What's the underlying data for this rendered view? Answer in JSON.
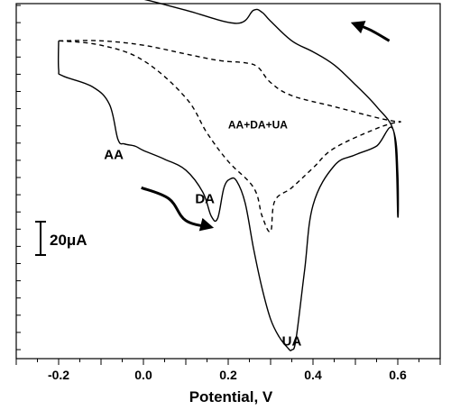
{
  "chart_data": {
    "type": "line",
    "title": "",
    "xlabel": "Potential, V",
    "ylabel": "",
    "xlim": [
      -0.3,
      0.7
    ],
    "ylim": [
      -60,
      102
    ],
    "xticks": [
      -0.2,
      0.0,
      0.2,
      0.4,
      0.6
    ],
    "xtick_labels": [
      "-0.2",
      "0.0",
      "0.2",
      "0.4",
      "0.6"
    ],
    "grid": false,
    "legend": "none",
    "scale_bar": {
      "label": "20μA",
      "value": 20
    },
    "annotations": [
      {
        "text": "AA",
        "x": -0.07,
        "y": 31
      },
      {
        "text": "DA",
        "x": 0.145,
        "y": 11
      },
      {
        "text": "UA",
        "x": 0.35,
        "y": -54
      },
      {
        "text": "AA+DA+UA",
        "x": 0.27,
        "y": 45
      }
    ],
    "arrows": [
      {
        "name": "reverse-scan-arrow",
        "points": [
          [
            0.58,
            85
          ],
          [
            0.535,
            90
          ],
          [
            0.495,
            93
          ]
        ]
      },
      {
        "name": "forward-scan-arrow",
        "points": [
          [
            -0.005,
            18
          ],
          [
            0.06,
            13
          ],
          [
            0.1,
            3
          ],
          [
            0.16,
            0
          ]
        ]
      }
    ],
    "series": [
      {
        "style": "solid",
        "x": [
          -0.2,
          -0.2,
          -0.19,
          -0.12,
          -0.08,
          -0.06,
          -0.045,
          -0.02,
          0.0,
          0.05,
          0.1,
          0.14,
          0.16,
          0.175,
          0.19,
          0.205,
          0.22,
          0.24,
          0.26,
          0.28,
          0.3,
          0.32,
          0.34,
          0.35,
          0.36,
          0.38,
          0.4,
          0.45,
          0.5,
          0.55,
          0.59,
          0.6,
          0.6,
          0.59,
          0.55,
          0.5,
          0.45,
          0.4,
          0.35,
          0.3,
          0.28,
          0.26,
          0.22,
          0.1,
          0.0,
          -0.1,
          -0.14,
          -0.16,
          -0.2
        ],
        "y": [
          85,
          72,
          69,
          64,
          56,
          40,
          38,
          37,
          35,
          31,
          26,
          16,
          5,
          4,
          18,
          22,
          21,
          11,
          -10,
          -28,
          -42,
          -50,
          -55,
          -56,
          -51,
          -20,
          10,
          28,
          33,
          37,
          44,
          5,
          25,
          44,
          55,
          65,
          74,
          80,
          85,
          94,
          98,
          99,
          93,
          99,
          104,
          108,
          108,
          106,
          110
        ]
      },
      {
        "style": "dashed",
        "x": [
          -0.2,
          -0.1,
          0.0,
          0.1,
          0.18,
          0.24,
          0.27,
          0.3,
          0.35,
          0.45,
          0.55,
          0.6,
          0.6,
          0.55,
          0.45,
          0.4,
          0.35,
          0.31,
          0.3,
          0.28,
          0.26,
          0.2,
          0.15,
          0.1,
          0.0,
          -0.1,
          -0.2
        ],
        "y": [
          85,
          85,
          83,
          79,
          76,
          75,
          73,
          66,
          60,
          55,
          50,
          48,
          48,
          45,
          36,
          27,
          18,
          12,
          -2,
          5,
          18,
          30,
          43,
          59,
          76,
          83,
          85
        ]
      }
    ]
  }
}
